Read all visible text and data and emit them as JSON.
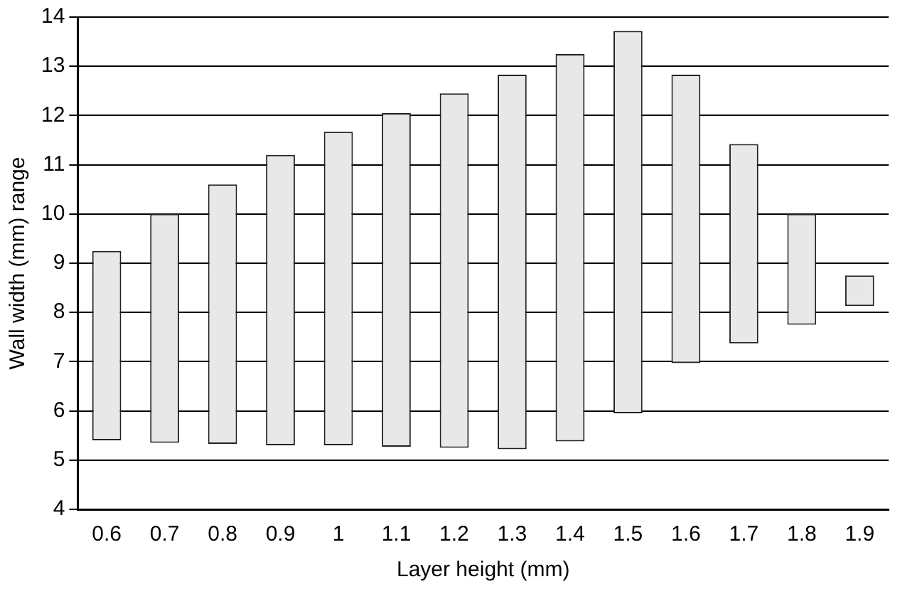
{
  "chart_data": {
    "type": "bar",
    "xlabel": "Layer height (mm)",
    "ylabel": "Wall width (mm) range",
    "categories": [
      "0.6",
      "0.7",
      "0.8",
      "0.9",
      "1",
      "1.1",
      "1.2",
      "1.3",
      "1.4",
      "1.5",
      "1.6",
      "1.7",
      "1.8",
      "1.9"
    ],
    "base": [
      5.4,
      5.35,
      5.33,
      5.3,
      5.3,
      5.27,
      5.25,
      5.22,
      5.38,
      5.95,
      6.97,
      7.37,
      7.75,
      8.13
    ],
    "values": [
      3.85,
      4.65,
      5.27,
      5.9,
      6.37,
      6.78,
      7.2,
      7.61,
      7.87,
      7.77,
      5.86,
      4.05,
      2.25,
      0.62
    ],
    "color": "#e8e8e8",
    "ylim": [
      4,
      14
    ],
    "yticks": [
      4,
      5,
      6,
      7,
      8,
      9,
      10,
      11,
      12,
      13,
      14
    ],
    "grid": "y",
    "legend": false
  }
}
